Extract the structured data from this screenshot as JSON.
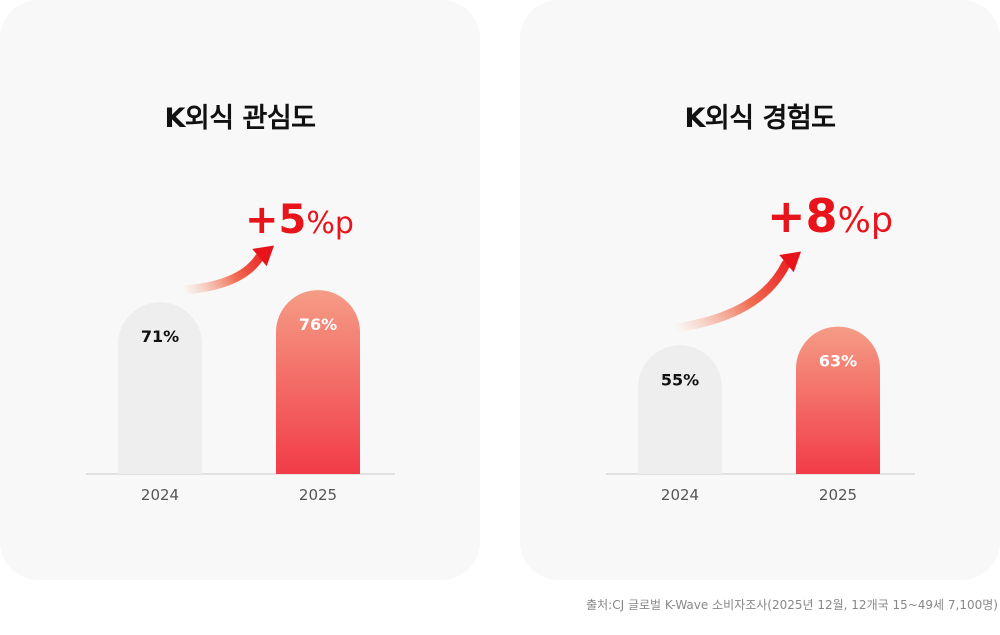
{
  "colors": {
    "card_bg": "#f8f8f8",
    "bar_prev": "#efeeee",
    "bar_curr_top": "#f59c86",
    "bar_curr_bottom": "#f23c47",
    "accent_red": "#e8141c",
    "axis_line": "#cccccc"
  },
  "icons": [
    "arrow-up-right-gradient-icon"
  ],
  "chart_data": [
    {
      "type": "bar",
      "title": "K외식 관심도",
      "categories": [
        "2024",
        "2025"
      ],
      "values": [
        71,
        76
      ],
      "value_labels": [
        "71%",
        "76%"
      ],
      "delta": {
        "value": "+5",
        "unit": "%p"
      },
      "unit": "%",
      "ylim": [
        0,
        100
      ],
      "grid": false,
      "legend": "none"
    },
    {
      "type": "bar",
      "title": "K외식 경험도",
      "categories": [
        "2024",
        "2025"
      ],
      "values": [
        55,
        63
      ],
      "value_labels": [
        "55%",
        "63%"
      ],
      "delta": {
        "value": "+8",
        "unit": "%p"
      },
      "unit": "%",
      "ylim": [
        0,
        100
      ],
      "grid": false,
      "legend": "none"
    }
  ],
  "source": "출처:CJ 글로벌 K-Wave 소비자조사(2025년 12월, 12개국 15~49세 7,100명)"
}
